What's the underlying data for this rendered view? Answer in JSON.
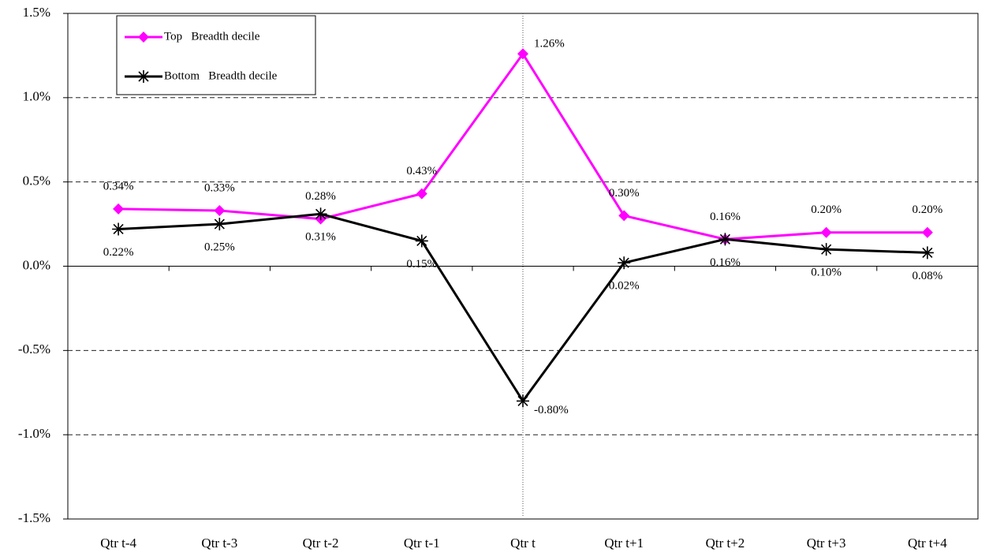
{
  "chart_data": {
    "type": "line",
    "categories": [
      "Qtr t-4",
      "Qtr t-3",
      "Qtr t-2",
      "Qtr t-1",
      "Qtr t",
      "Qtr t+1",
      "Qtr t+2",
      "Qtr t+3",
      "Qtr t+4"
    ],
    "series": [
      {
        "name": "Top   Breadth decile",
        "color": "#ff00ff",
        "marker": "diamond",
        "values": [
          0.34,
          0.33,
          0.28,
          0.43,
          1.26,
          0.3,
          0.16,
          0.2,
          0.2
        ],
        "value_labels": [
          "0.34%",
          "0.33%",
          "0.28%",
          "0.43%",
          "1.26%",
          "0.30%",
          "0.16%",
          "0.20%",
          "0.20%"
        ]
      },
      {
        "name": "Bottom   Breadth decile",
        "color": "#000000",
        "marker": "asterisk",
        "values": [
          0.22,
          0.25,
          0.31,
          0.15,
          -0.8,
          0.02,
          0.16,
          0.1,
          0.08
        ],
        "value_labels": [
          "0.22%",
          "0.25%",
          "0.31%",
          "0.15%",
          "-0.80%",
          "0.02%",
          "0.16%",
          "0.10%",
          "0.08%"
        ]
      }
    ],
    "ylim": [
      -1.5,
      1.5
    ],
    "yticks": [
      {
        "value": -1.5,
        "label": "-1.5%"
      },
      {
        "value": -1.0,
        "label": "-1.0%"
      },
      {
        "value": -0.5,
        "label": "-0.5%"
      },
      {
        "value": 0.0,
        "label": "0.0%"
      },
      {
        "value": 0.5,
        "label": "0.5%"
      },
      {
        "value": 1.0,
        "label": "1.0%"
      },
      {
        "value": 1.5,
        "label": "1.5%"
      }
    ],
    "grid": true,
    "legend": "upper left"
  }
}
